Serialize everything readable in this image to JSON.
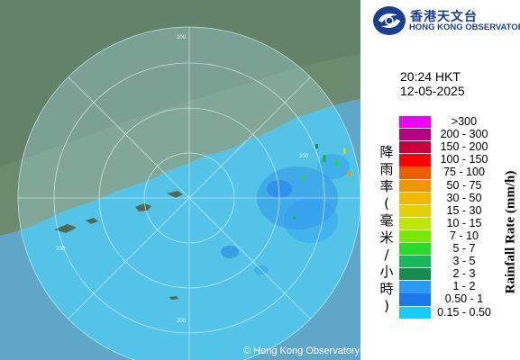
{
  "logo": {
    "name_zh": "香港天文台",
    "name_en": "HONG KONG OBSERVATORY",
    "icon": "hko-logo-icon"
  },
  "timestamp": {
    "time": "20:24 HKT",
    "date": "12-05-2025"
  },
  "legend": {
    "title_en": "Rainfall Rate (mm/h)",
    "title_zh": [
      "降",
      "雨",
      "率",
      "(",
      "毫",
      "米",
      "/",
      "小",
      "時",
      ")"
    ],
    "items": [
      {
        "label": ">300",
        "color": "#f000f0"
      },
      {
        "label": "200 - 300",
        "color": "#b5007f"
      },
      {
        "label": "150 - 200",
        "color": "#c8003c"
      },
      {
        "label": "100 - 150",
        "color": "#ff0000"
      },
      {
        "label": "75 - 100",
        "color": "#f05a00"
      },
      {
        "label": "50 - 75",
        "color": "#ef9600"
      },
      {
        "label": "30 - 50",
        "color": "#f1b900"
      },
      {
        "label": "15 - 30",
        "color": "#e6d100"
      },
      {
        "label": "10 - 15",
        "color": "#bde600"
      },
      {
        "label": "7 - 10",
        "color": "#7be800"
      },
      {
        "label": "5 - 7",
        "color": "#29dc29"
      },
      {
        "label": "3 - 5",
        "color": "#16b95a"
      },
      {
        "label": "2 - 3",
        "color": "#168c4c"
      },
      {
        "label": "1 - 2",
        "color": "#2b9af5"
      },
      {
        "label": "0.50 - 1",
        "color": "#1e79e8"
      },
      {
        "label": "0.15 - 0.50",
        "color": "#18cdf2"
      }
    ]
  },
  "range_rings": {
    "labels": [
      "200",
      "200",
      "200",
      "200"
    ]
  },
  "copyright": "© Hong Kong Observatory"
}
